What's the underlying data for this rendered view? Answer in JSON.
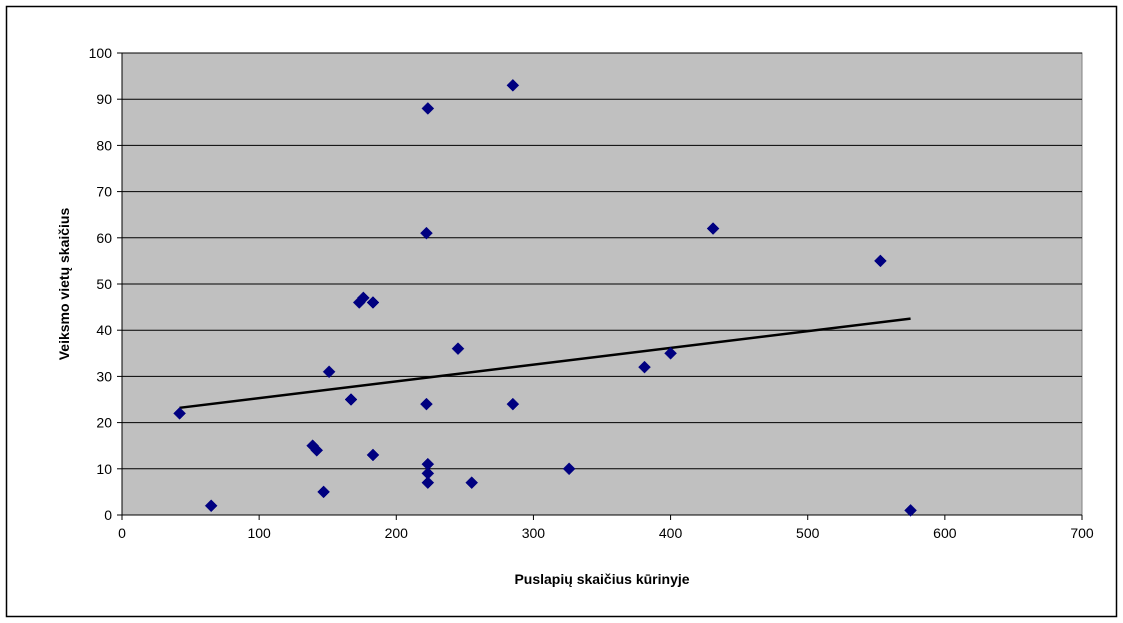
{
  "colors": {
    "plot_background": "#C0C0C0",
    "marker": "#000080",
    "trendline": "#000000",
    "gridline": "#000000",
    "frame": "#000000"
  },
  "chart_data": {
    "type": "scatter",
    "title": "",
    "xlabel": "Puslapių skaičius kūrinyje",
    "ylabel": "Veiksmo vietų skaičius",
    "xlim": [
      0,
      700
    ],
    "ylim": [
      0,
      100
    ],
    "x_ticks": [
      0,
      100,
      200,
      300,
      400,
      500,
      600,
      700
    ],
    "y_ticks": [
      0,
      10,
      20,
      30,
      40,
      50,
      60,
      70,
      80,
      90,
      100
    ],
    "x_tick_labels": [
      "0",
      "100",
      "200",
      "300",
      "400",
      "500",
      "600",
      "700"
    ],
    "y_tick_labels": [
      "0",
      "10",
      "20",
      "30",
      "40",
      "50",
      "60",
      "70",
      "80",
      "90",
      "100"
    ],
    "grid": "horizontal major gridlines",
    "marker_shape": "diamond",
    "series": [
      {
        "points": [
          {
            "x": 42,
            "y": 22
          },
          {
            "x": 65,
            "y": 2
          },
          {
            "x": 139,
            "y": 15
          },
          {
            "x": 142,
            "y": 14
          },
          {
            "x": 147,
            "y": 5
          },
          {
            "x": 151,
            "y": 31
          },
          {
            "x": 167,
            "y": 25
          },
          {
            "x": 173,
            "y": 46
          },
          {
            "x": 176,
            "y": 47
          },
          {
            "x": 183,
            "y": 46
          },
          {
            "x": 183,
            "y": 13
          },
          {
            "x": 222,
            "y": 61
          },
          {
            "x": 222,
            "y": 24
          },
          {
            "x": 223,
            "y": 88
          },
          {
            "x": 223,
            "y": 11
          },
          {
            "x": 223,
            "y": 9
          },
          {
            "x": 223,
            "y": 7
          },
          {
            "x": 245,
            "y": 36
          },
          {
            "x": 255,
            "y": 7
          },
          {
            "x": 285,
            "y": 93
          },
          {
            "x": 285,
            "y": 24
          },
          {
            "x": 326,
            "y": 10
          },
          {
            "x": 381,
            "y": 32
          },
          {
            "x": 400,
            "y": 35
          },
          {
            "x": 431,
            "y": 62
          },
          {
            "x": 553,
            "y": 55
          },
          {
            "x": 575,
            "y": 1
          }
        ]
      }
    ],
    "trendline": {
      "type": "linear",
      "x_start": 42,
      "y_start": 23.2,
      "x_end": 575,
      "y_end": 42.5
    }
  }
}
